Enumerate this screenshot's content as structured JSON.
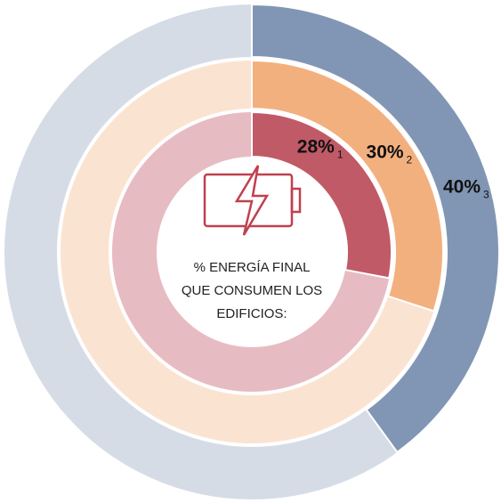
{
  "chart_data": {
    "type": "nested-donut",
    "rings": [
      {
        "value": 28,
        "value_label": "28%",
        "note": "1",
        "color": "#c05a67",
        "rest_color": "#e6bcc2"
      },
      {
        "value": 30,
        "value_label": "30%",
        "note": "2",
        "color": "#f3b07f",
        "rest_color": "#fbe3d2"
      },
      {
        "value": 40,
        "value_label": "40%",
        "note": "3",
        "color": "#8196b4",
        "rest_color": "#d6dce6"
      }
    ],
    "total": 100,
    "center_text": [
      "% ENERGÍA FINAL",
      "QUE CONSUMEN LOS",
      "EDIFICIOS:"
    ]
  }
}
